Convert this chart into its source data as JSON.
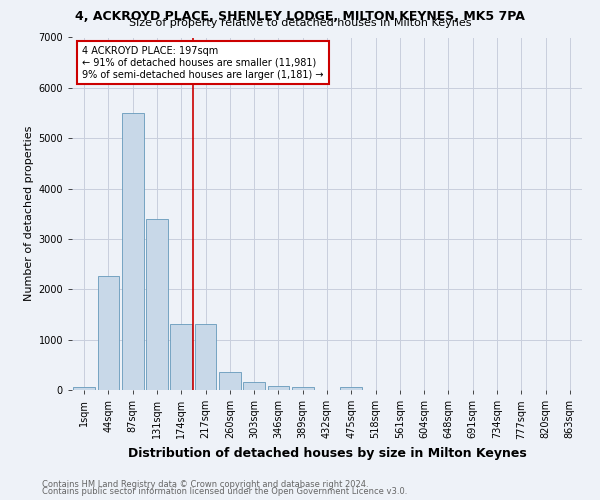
{
  "title": "4, ACKROYD PLACE, SHENLEY LODGE, MILTON KEYNES, MK5 7PA",
  "subtitle": "Size of property relative to detached houses in Milton Keynes",
  "xlabel": "Distribution of detached houses by size in Milton Keynes",
  "ylabel": "Number of detached properties",
  "footnote1": "Contains HM Land Registry data © Crown copyright and database right 2024.",
  "footnote2": "Contains public sector information licensed under the Open Government Licence v3.0.",
  "bar_labels": [
    "1sqm",
    "44sqm",
    "87sqm",
    "131sqm",
    "174sqm",
    "217sqm",
    "260sqm",
    "303sqm",
    "346sqm",
    "389sqm",
    "432sqm",
    "475sqm",
    "518sqm",
    "561sqm",
    "604sqm",
    "648sqm",
    "691sqm",
    "734sqm",
    "777sqm",
    "820sqm",
    "863sqm"
  ],
  "bar_values": [
    60,
    2270,
    5500,
    3400,
    1310,
    1310,
    360,
    155,
    70,
    55,
    0,
    55,
    0,
    0,
    0,
    0,
    0,
    0,
    0,
    0,
    0
  ],
  "bar_color": "#c8d8e8",
  "bar_edge_color": "#6699bb",
  "ylim": [
    0,
    7000
  ],
  "yticks": [
    0,
    1000,
    2000,
    3000,
    4000,
    5000,
    6000,
    7000
  ],
  "vline_x": 4.5,
  "vline_color": "#cc0000",
  "annotation_text": "4 ACKROYD PLACE: 197sqm\n← 91% of detached houses are smaller (11,981)\n9% of semi-detached houses are larger (1,181) →",
  "annotation_box_color": "#ffffff",
  "annotation_box_edge": "#cc0000",
  "background_color": "#eef2f8",
  "grid_color": "#c8cedd",
  "title_fontsize": 9,
  "subtitle_fontsize": 8,
  "ylabel_fontsize": 8,
  "xlabel_fontsize": 9,
  "tick_fontsize": 7,
  "footnote_fontsize": 6
}
